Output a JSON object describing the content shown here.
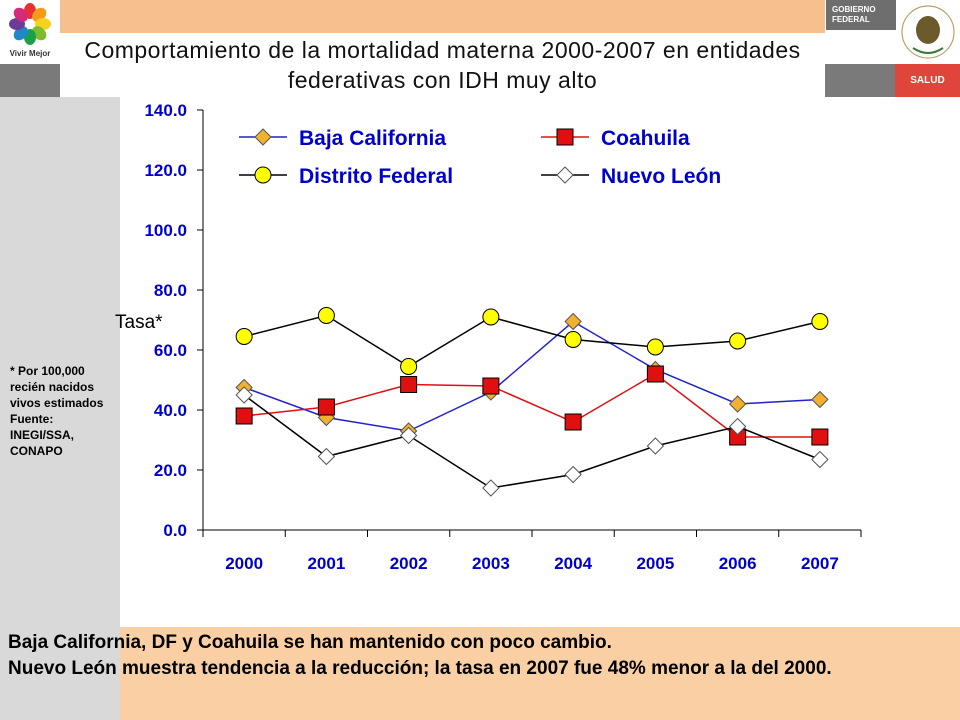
{
  "header": {
    "title": "Comportamiento de la mortalidad materna 2000-2007 en entidades federativas con IDH muy alto",
    "logo_text": "Vivir Mejor",
    "gov_text": "GOBIERNO FEDERAL",
    "salud_text": "SALUD"
  },
  "side_note": "* Por 100,000 recién nacidos vivos estimados Fuente: INEGI/SSA, CONAPO",
  "bottom": {
    "line1": "Baja California, DF y Coahuila se han mantenido con poco cambio.",
    "line2": "Nuevo León muestra tendencia a la reducción; la tasa en 2007 fue 48% menor a la del 2000."
  },
  "colors": {
    "header_band": "#f6c08e",
    "bottom_band": "#f9cfa3",
    "side_panel": "#d9d9d9",
    "axis_text": "#0000cc"
  },
  "chart_data": {
    "type": "line",
    "ylabel": "Tasa*",
    "ylim": [
      0,
      140
    ],
    "yticks": [
      "0.0",
      "20.0",
      "40.0",
      "60.0",
      "80.0",
      "100.0",
      "120.0",
      "140.0"
    ],
    "categories": [
      "2000",
      "2001",
      "2002",
      "2003",
      "2004",
      "2005",
      "2006",
      "2007"
    ],
    "legend_placement": "top",
    "grid": false,
    "series": [
      {
        "name": "Baja California",
        "color": "#2222cc",
        "marker": "diamond",
        "marker_fill": "#f0b030",
        "values": [
          47.5,
          37.5,
          33.0,
          46.0,
          69.5,
          53.5,
          42.0,
          43.5
        ]
      },
      {
        "name": "Coahuila",
        "color": "#e01010",
        "marker": "square",
        "marker_fill": "#e01010",
        "values": [
          38.0,
          41.0,
          48.5,
          48.0,
          36.0,
          52.0,
          31.0,
          31.0
        ]
      },
      {
        "name": "Distrito Federal",
        "color": "#000000",
        "marker": "circle",
        "marker_fill": "#ffff00",
        "values": [
          64.5,
          71.5,
          54.5,
          71.0,
          63.5,
          61.0,
          63.0,
          69.5
        ]
      },
      {
        "name": "Nuevo León",
        "color": "#000000",
        "marker": "diamond",
        "marker_fill": "#ffffff",
        "values": [
          45.0,
          24.5,
          31.5,
          14.0,
          18.5,
          28.0,
          34.5,
          23.5
        ]
      }
    ]
  }
}
